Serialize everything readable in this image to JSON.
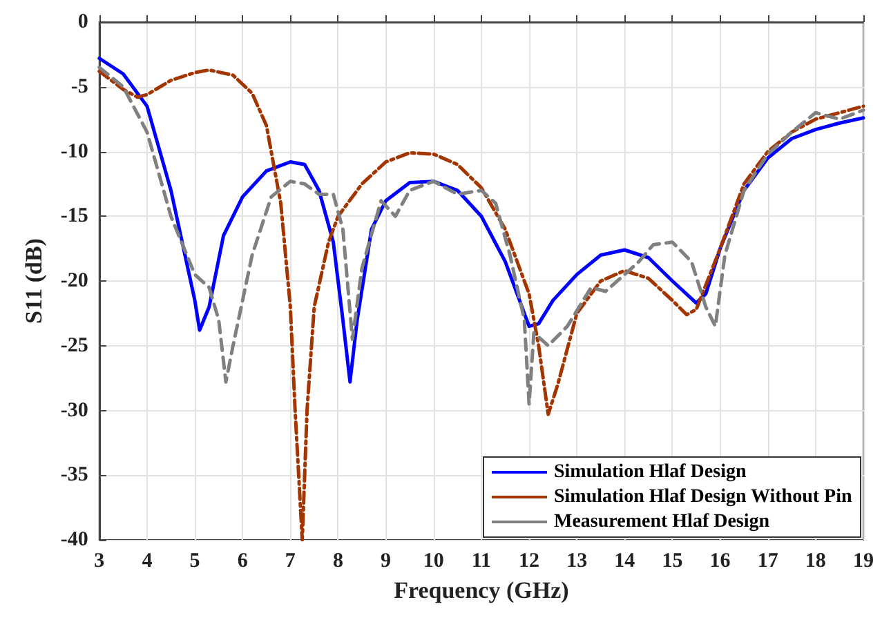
{
  "chart_data": {
    "type": "line",
    "xlabel": "Frequency (GHz)",
    "ylabel": "S11 (dB)",
    "xlim": [
      3,
      19
    ],
    "xticks": [
      3,
      4,
      5,
      6,
      7,
      8,
      9,
      10,
      11,
      12,
      13,
      14,
      15,
      16,
      17,
      18,
      19
    ],
    "ylim": [
      -40,
      0
    ],
    "yticks": [
      -40,
      -35,
      -30,
      -25,
      -20,
      -15,
      -10,
      -5,
      0
    ],
    "grid": true,
    "legend": "bottom right",
    "marker": "none",
    "series": [
      {
        "name": "Simulation Hlaf Design",
        "color": "#0000ff",
        "line_style": "solid",
        "x": [
          3,
          3.5,
          4,
          4.5,
          5,
          5.1,
          5.3,
          5.6,
          6,
          6.5,
          7,
          7.3,
          7.6,
          7.9,
          8.1,
          8.25,
          8.4,
          8.7,
          9,
          9.5,
          10,
          10.5,
          11,
          11.5,
          12,
          12.2,
          12.5,
          13,
          13.5,
          14,
          14.5,
          15,
          15.5,
          15.7,
          16,
          16.5,
          17,
          17.5,
          18,
          18.5,
          19
        ],
        "values": [
          -2.8,
          -4,
          -6.5,
          -13,
          -21.5,
          -23.8,
          -22,
          -16.5,
          -13.5,
          -11.5,
          -10.8,
          -11,
          -13,
          -17,
          -23,
          -27.8,
          -23,
          -16,
          -13.8,
          -12.4,
          -12.3,
          -13,
          -15,
          -18.5,
          -23.5,
          -23.3,
          -21.5,
          -19.5,
          -18,
          -17.6,
          -18.2,
          -20,
          -21.7,
          -21,
          -17.5,
          -13,
          -10.5,
          -9,
          -8.3,
          -7.8,
          -7.4
        ]
      },
      {
        "name": "Simulation Hlaf Design Without Pin",
        "color": "#a33500",
        "line_style": "dashdot",
        "x": [
          3,
          3.5,
          3.8,
          4,
          4.5,
          5,
          5.3,
          5.8,
          6.2,
          6.5,
          6.8,
          7,
          7.1,
          7.25,
          7.35,
          7.5,
          7.8,
          8,
          8.5,
          9,
          9.5,
          10,
          10.5,
          11,
          11.5,
          12,
          12.2,
          12.4,
          12.6,
          13,
          13.5,
          14,
          14.5,
          15,
          15.3,
          15.5,
          16,
          16.5,
          17,
          17.5,
          18,
          18.5,
          19
        ],
        "values": [
          -3.8,
          -5.2,
          -5.8,
          -5.6,
          -4.5,
          -3.9,
          -3.7,
          -4.1,
          -5.5,
          -8,
          -14,
          -22,
          -30,
          -40,
          -30,
          -22,
          -17,
          -15,
          -12.5,
          -10.8,
          -10.1,
          -10.2,
          -11,
          -12.8,
          -16,
          -21,
          -25,
          -30.3,
          -28,
          -22.5,
          -20,
          -19.2,
          -19.8,
          -21.5,
          -22.6,
          -22.2,
          -17.5,
          -12.5,
          -10,
          -8.5,
          -7.5,
          -7,
          -6.5
        ]
      },
      {
        "name": "Measurement Hlaf Design",
        "color": "#808080",
        "line_style": "dashed",
        "x": [
          3,
          3.5,
          4,
          4.5,
          5,
          5.3,
          5.5,
          5.65,
          5.8,
          6.2,
          6.6,
          7,
          7.3,
          7.6,
          7.9,
          8.1,
          8.3,
          8.5,
          8.9,
          9.2,
          9.5,
          10,
          10.5,
          11,
          11.3,
          11.6,
          11.9,
          12,
          12.1,
          12.4,
          12.8,
          13.3,
          13.6,
          14,
          14.3,
          14.6,
          15,
          15.4,
          15.7,
          15.9,
          16.1,
          16.5,
          17,
          17.5,
          18,
          18.5,
          19
        ],
        "values": [
          -3.5,
          -5,
          -8.5,
          -15,
          -19.5,
          -20.5,
          -23,
          -27.8,
          -25,
          -18,
          -13.5,
          -12.3,
          -12.5,
          -13.3,
          -13.3,
          -16,
          -24.5,
          -19,
          -13.8,
          -15,
          -13,
          -12.3,
          -13.3,
          -13,
          -14,
          -18,
          -23,
          -29.5,
          -24,
          -25,
          -23.5,
          -20.5,
          -20.8,
          -19.5,
          -18.5,
          -17.2,
          -17,
          -18.5,
          -22,
          -23.5,
          -18,
          -13,
          -10.2,
          -8.5,
          -7,
          -7.5,
          -6.8
        ]
      }
    ]
  }
}
